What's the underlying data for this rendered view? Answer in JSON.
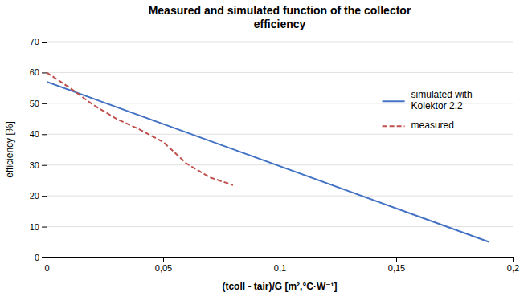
{
  "chart_data": {
    "type": "line",
    "title": "Measured and simulated function of the collector\nefficiency",
    "x_label": "(tcoll - tair)/G [m²,°C·W⁻¹]",
    "y_label": "efficiency [%]",
    "xlim": [
      0,
      0.2
    ],
    "ylim": [
      0,
      70
    ],
    "xticks": [
      0,
      {
        "value": 0.05,
        "label": "0,05"
      },
      {
        "value": 0.1,
        "label": "0,1"
      },
      {
        "value": 0.15,
        "label": "0,15"
      },
      {
        "value": 0.2,
        "label": "0,2"
      }
    ],
    "yticks": [
      0,
      10,
      20,
      30,
      40,
      50,
      60,
      70
    ],
    "grid": true,
    "legend": "upper right",
    "series": [
      {
        "name": "simulated with\nKolektor 2.2",
        "color": "#4472C4",
        "line_style": "solid",
        "x": [
          0.0,
          0.19
        ],
        "values": [
          57.0,
          5.0
        ]
      },
      {
        "name": "measured",
        "color": "#C0504D",
        "line_style": "dashed",
        "x": [
          0.0,
          0.01,
          0.02,
          0.03,
          0.04,
          0.05,
          0.06,
          0.07,
          0.08
        ],
        "values": [
          60.0,
          55.0,
          49.5,
          45.0,
          41.5,
          37.5,
          30.5,
          26.0,
          23.5
        ]
      }
    ]
  }
}
